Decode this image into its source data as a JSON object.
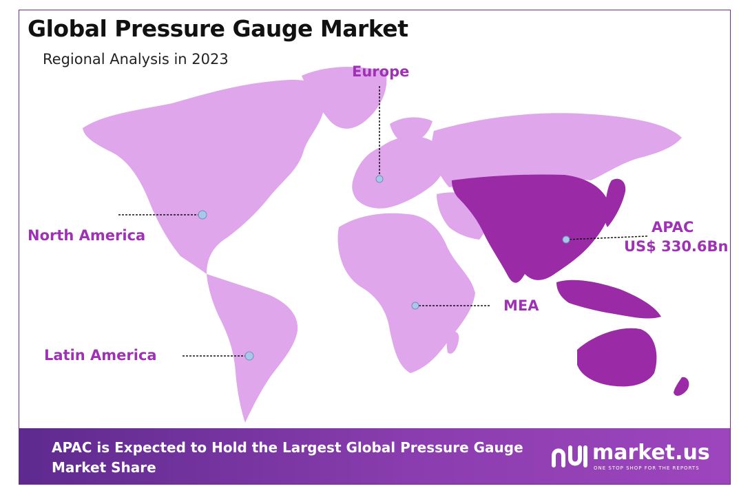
{
  "title": "Global Pressure Gauge Market",
  "subtitle": "Regional Analysis in 2023",
  "colors": {
    "land": "#dfa6ec",
    "highlight": "#9b2aa6",
    "label": "#9f32b4",
    "marker": "#a9c7e8",
    "footer_start": "#5e2a8f",
    "footer_end": "#9d45bd"
  },
  "regions": {
    "europe": {
      "label": "Europe"
    },
    "north_america": {
      "label": "North America"
    },
    "latin_america": {
      "label": "Latin America"
    },
    "mea": {
      "label": "MEA"
    },
    "apac": {
      "label": "APAC",
      "value": "US$ 330.6Bn",
      "highlighted": true
    }
  },
  "footer": {
    "text": "APAC is Expected to Hold the Largest Global Pressure Gauge Market Share"
  },
  "logo": {
    "icon": "market-us-logo-icon",
    "name": "market.us",
    "tagline": "ONE STOP SHOP FOR THE REPORTS"
  }
}
